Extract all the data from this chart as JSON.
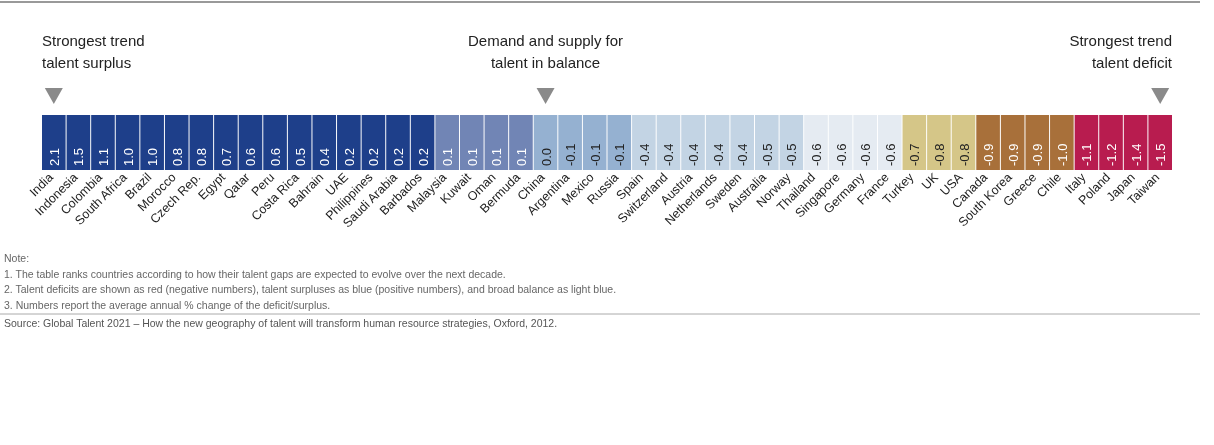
{
  "chart_data": {
    "type": "heatmap",
    "categories": [
      "India",
      "Indonesia",
      "Colombia",
      "South Africa",
      "Brazil",
      "Morocco",
      "Czech Rep.",
      "Egypt",
      "Qatar",
      "Peru",
      "Costa Rica",
      "Bahrain",
      "UAE",
      "Philippines",
      "Saudi Arabia",
      "Barbados",
      "Malaysia",
      "Kuwait",
      "Oman",
      "Bermuda",
      "China",
      "Argentina",
      "Mexico",
      "Russia",
      "Spain",
      "Switzerland",
      "Austria",
      "Netherlands",
      "Sweden",
      "Australia",
      "Norway",
      "Thailand",
      "Singapore",
      "Germany",
      "France",
      "Turkey",
      "UK",
      "USA",
      "Canada",
      "South Korea",
      "Greece",
      "Chile",
      "Italy",
      "Poland",
      "Japan",
      "Taiwan"
    ],
    "y_categories": [
      null
    ],
    "cell_labels": [
      [
        "2.1",
        "1.5",
        "1.1",
        "1.0",
        "1.0",
        "0.8",
        "0.8",
        "0.7",
        "0.6",
        "0.6",
        "0.5",
        "0.4",
        "0.2",
        "0.2",
        "0.2",
        "0.2",
        "0.1",
        "0.1",
        "0.1",
        "0.1",
        "0.0",
        "-0.1",
        "-0.1",
        "-0.1",
        "-0.4",
        "-0.4",
        "-0.4",
        "-0.4",
        "-0.4",
        "-0.5",
        "-0.5",
        "-0.6",
        "-0.6",
        "-0.6",
        "-0.6",
        "-0.7",
        "-0.8",
        "-0.8",
        "-0.9",
        "-0.9",
        "-0.9",
        "-1.0",
        "-1.1",
        "-1.2",
        "-1.4",
        "-1.5"
      ]
    ],
    "cells": [
      [
        2.1,
        1.5,
        1.1,
        1.0,
        1.0,
        0.8,
        0.8,
        0.7,
        0.6,
        0.6,
        0.5,
        0.4,
        0.2,
        0.2,
        0.2,
        0.2,
        0.1,
        0.1,
        0.1,
        0.1,
        0.0,
        -0.1,
        -0.1,
        -0.1,
        -0.4,
        -0.4,
        -0.4,
        -0.4,
        -0.4,
        -0.5,
        -0.5,
        -0.6,
        -0.6,
        -0.6,
        -0.6,
        -0.7,
        -0.8,
        -0.8,
        -0.9,
        -0.9,
        -0.9,
        -1.0,
        -1.1,
        -1.2,
        -1.4,
        -1.5
      ]
    ],
    "colors": [
      "#1e3f8a",
      "#1e3f8a",
      "#1e3f8a",
      "#1e3f8a",
      "#1e3f8a",
      "#1e3f8a",
      "#1e3f8a",
      "#1e3f8a",
      "#1e3f8a",
      "#1e3f8a",
      "#1e3f8a",
      "#1e3f8a",
      "#1e3f8a",
      "#1e3f8a",
      "#1e3f8a",
      "#1e3f8a",
      "#7185b5",
      "#7185b5",
      "#7185b5",
      "#7185b5",
      "#95b1d1",
      "#95b1d1",
      "#95b1d1",
      "#95b1d1",
      "#c3d4e4",
      "#c3d4e4",
      "#c3d4e4",
      "#c3d4e4",
      "#c3d4e4",
      "#c3d4e4",
      "#c3d4e4",
      "#e5ebf2",
      "#e5ebf2",
      "#e5ebf2",
      "#e5ebf2",
      "#d5c688",
      "#d5c688",
      "#d5c688",
      "#a8703a",
      "#a8703a",
      "#a8703a",
      "#a8703a",
      "#b81c4f",
      "#b81c4f",
      "#b81c4f",
      "#b81c4f"
    ],
    "data_labels": true,
    "annotations": [
      "Strongest trend\ntalent surplus",
      "Demand and supply for\ntalent in balance",
      "Strongest trend\ntalent deficit",
      "Note:",
      "1. The table ranks countries according to how their talent gaps are expected to evolve over the next decade.",
      "2. Talent deficits are shown as red (negative numbers), talent surpluses as blue (positive numbers), and broad balance as light blue.",
      "3. Numbers report the average annual % change of the deficit/surplus.",
      "Source: Global Talent 2021 – How the new geography of talent will transform human resource strategies, Oxford, 2012."
    ]
  }
}
